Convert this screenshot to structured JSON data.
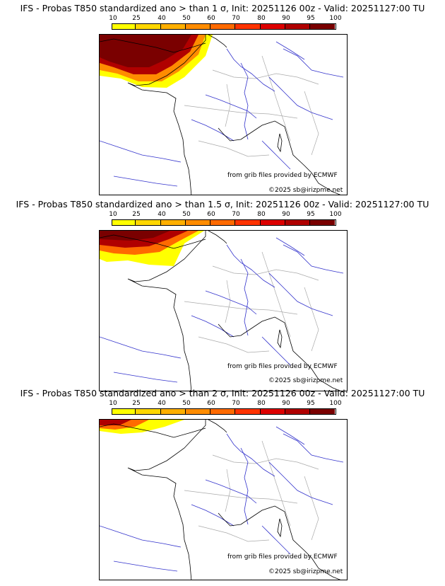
{
  "panels": [
    {
      "title": "IFS - Probas T850  standardized ano > than 1 σ, Init: 20251126 00z - Valid: 20251127:00 TU",
      "level": "1"
    },
    {
      "title": "IFS - Probas T850  standardized ano > than 1.5 σ, Init: 20251126 00z - Valid: 20251127:00 TU",
      "level": "1.5"
    },
    {
      "title": "IFS - Probas T850  standardized ano > than 2 σ, Init: 20251126 00z - Valid: 20251127:00 TU",
      "level": "2"
    }
  ],
  "colorbar": {
    "ticks": [
      "10",
      "25",
      "40",
      "50",
      "60",
      "70",
      "80",
      "90",
      "95",
      "100"
    ],
    "colors": [
      "#ffff00",
      "#ffd700",
      "#ffb000",
      "#ff8c00",
      "#ff6a00",
      "#ff3300",
      "#dd0000",
      "#b00000",
      "#7a0000"
    ]
  },
  "credits": {
    "source": "from grib files provided by ECMWF",
    "copyright": "©2025 sb@irizpme.net"
  },
  "line_colors": {
    "coast": "#000000",
    "rivers": "#3333cc",
    "borders": "#aaaaaa"
  }
}
